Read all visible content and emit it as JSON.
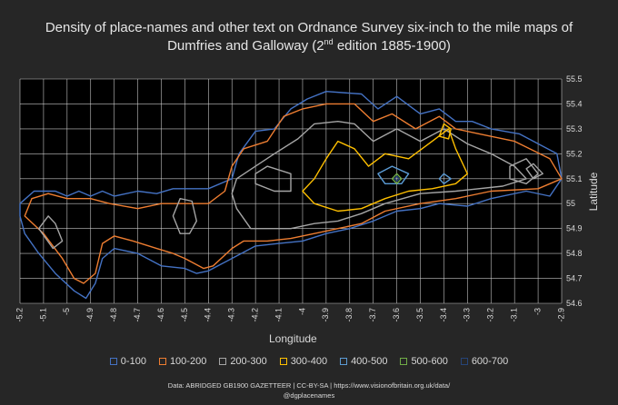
{
  "title": {
    "line1": "Density of place-names and other text on Ordnance Survey six-inch to the mile maps of",
    "line2_before": "Dumfries and Galloway (2",
    "line2_sup": "nd",
    "line2_after": " edition 1885-1900)"
  },
  "chart_data": {
    "type": "contour",
    "xlabel": "Longitude",
    "ylabel": "Latitude",
    "xlim": [
      -5.2,
      -2.9
    ],
    "ylim": [
      54.6,
      55.5
    ],
    "x_ticks": [
      "-5.2",
      "-5.1",
      "-5",
      "-4.9",
      "-4.8",
      "-4.7",
      "-4.6",
      "-4.5",
      "-4.4",
      "-4.3",
      "-4.2",
      "-4.1",
      "-4",
      "-3.9",
      "-3.8",
      "-3.7",
      "-3.6",
      "-3.5",
      "-3.4",
      "-3.3",
      "-3.2",
      "-3.1",
      "-3",
      "-2.9"
    ],
    "y_ticks": [
      "55.5",
      "55.4",
      "55.3",
      "55.2",
      "55.1",
      "55",
      "54.9",
      "54.8",
      "54.7",
      "54.6"
    ],
    "grid": true,
    "legend_position": "bottom",
    "series": [
      {
        "name": "0-100",
        "color": "#4472c4"
      },
      {
        "name": "100-200",
        "color": "#ed7d31"
      },
      {
        "name": "200-300",
        "color": "#a5a5a5"
      },
      {
        "name": "300-400",
        "color": "#ffc000"
      },
      {
        "name": "400-500",
        "color": "#5b9bd5"
      },
      {
        "name": "500-600",
        "color": "#70ad47"
      },
      {
        "name": "600-700",
        "color": "#264478"
      }
    ],
    "contours": [
      {
        "series": 0,
        "closed": true,
        "points": [
          [
            -5.2,
            54.95
          ],
          [
            -5.2,
            55.0
          ],
          [
            -5.14,
            55.05
          ],
          [
            -5.05,
            55.05
          ],
          [
            -5.0,
            55.03
          ],
          [
            -4.95,
            55.05
          ],
          [
            -4.9,
            55.03
          ],
          [
            -4.85,
            55.05
          ],
          [
            -4.8,
            55.03
          ],
          [
            -4.7,
            55.05
          ],
          [
            -4.62,
            55.04
          ],
          [
            -4.55,
            55.06
          ],
          [
            -4.4,
            55.06
          ],
          [
            -4.3,
            55.1
          ],
          [
            -4.27,
            55.2
          ],
          [
            -4.2,
            55.29
          ],
          [
            -4.12,
            55.3
          ],
          [
            -4.05,
            55.38
          ],
          [
            -3.98,
            55.42
          ],
          [
            -3.9,
            55.45
          ],
          [
            -3.75,
            55.44
          ],
          [
            -3.68,
            55.38
          ],
          [
            -3.6,
            55.43
          ],
          [
            -3.5,
            55.36
          ],
          [
            -3.42,
            55.38
          ],
          [
            -3.35,
            55.33
          ],
          [
            -3.28,
            55.33
          ],
          [
            -3.2,
            55.3
          ],
          [
            -3.08,
            55.28
          ],
          [
            -2.92,
            55.2
          ],
          [
            -2.9,
            55.1
          ],
          [
            -2.95,
            55.03
          ],
          [
            -3.05,
            55.05
          ],
          [
            -3.2,
            55.02
          ],
          [
            -3.3,
            54.99
          ],
          [
            -3.42,
            55.0
          ],
          [
            -3.5,
            54.98
          ],
          [
            -3.6,
            54.97
          ],
          [
            -3.7,
            54.93
          ],
          [
            -3.8,
            54.9
          ],
          [
            -3.9,
            54.88
          ],
          [
            -4.0,
            54.85
          ],
          [
            -4.1,
            54.84
          ],
          [
            -4.2,
            54.83
          ],
          [
            -4.3,
            54.78
          ],
          [
            -4.4,
            54.73
          ],
          [
            -4.45,
            54.72
          ],
          [
            -4.5,
            54.74
          ],
          [
            -4.6,
            54.75
          ],
          [
            -4.7,
            54.8
          ],
          [
            -4.8,
            54.82
          ],
          [
            -4.85,
            54.78
          ],
          [
            -4.88,
            54.68
          ],
          [
            -4.92,
            54.62
          ],
          [
            -4.97,
            54.65
          ],
          [
            -5.05,
            54.72
          ],
          [
            -5.12,
            54.8
          ],
          [
            -5.18,
            54.88
          ]
        ]
      },
      {
        "series": 1,
        "closed": true,
        "points": [
          [
            -5.18,
            54.95
          ],
          [
            -5.15,
            55.02
          ],
          [
            -5.08,
            55.04
          ],
          [
            -5.0,
            55.02
          ],
          [
            -4.9,
            55.02
          ],
          [
            -4.82,
            55.0
          ],
          [
            -4.7,
            54.98
          ],
          [
            -4.6,
            55.0
          ],
          [
            -4.5,
            55.0
          ],
          [
            -4.4,
            55.0
          ],
          [
            -4.33,
            55.05
          ],
          [
            -4.3,
            55.15
          ],
          [
            -4.25,
            55.22
          ],
          [
            -4.15,
            55.25
          ],
          [
            -4.08,
            55.35
          ],
          [
            -4.0,
            55.38
          ],
          [
            -3.9,
            55.4
          ],
          [
            -3.78,
            55.4
          ],
          [
            -3.7,
            55.33
          ],
          [
            -3.62,
            55.36
          ],
          [
            -3.52,
            55.3
          ],
          [
            -3.42,
            55.35
          ],
          [
            -3.35,
            55.3
          ],
          [
            -3.25,
            55.28
          ],
          [
            -3.1,
            55.25
          ],
          [
            -2.95,
            55.18
          ],
          [
            -2.9,
            55.1
          ],
          [
            -3.0,
            55.06
          ],
          [
            -3.2,
            55.05
          ],
          [
            -3.35,
            55.02
          ],
          [
            -3.5,
            55.0
          ],
          [
            -3.65,
            54.97
          ],
          [
            -3.75,
            54.92
          ],
          [
            -3.85,
            54.9
          ],
          [
            -3.95,
            54.88
          ],
          [
            -4.05,
            54.86
          ],
          [
            -4.15,
            54.85
          ],
          [
            -4.25,
            54.85
          ],
          [
            -4.3,
            54.82
          ],
          [
            -4.38,
            54.75
          ],
          [
            -4.42,
            54.74
          ],
          [
            -4.5,
            54.78
          ],
          [
            -4.55,
            54.8
          ],
          [
            -4.62,
            54.82
          ],
          [
            -4.72,
            54.85
          ],
          [
            -4.8,
            54.87
          ],
          [
            -4.85,
            54.84
          ],
          [
            -4.88,
            54.72
          ],
          [
            -4.93,
            54.68
          ],
          [
            -4.97,
            54.7
          ],
          [
            -5.02,
            54.78
          ],
          [
            -5.1,
            54.88
          ]
        ]
      },
      {
        "series": 2,
        "closed": true,
        "points": [
          [
            -4.28,
            55.1
          ],
          [
            -4.2,
            55.15
          ],
          [
            -4.12,
            55.2
          ],
          [
            -4.02,
            55.26
          ],
          [
            -3.95,
            55.32
          ],
          [
            -3.85,
            55.33
          ],
          [
            -3.78,
            55.32
          ],
          [
            -3.7,
            55.25
          ],
          [
            -3.6,
            55.3
          ],
          [
            -3.5,
            55.25
          ],
          [
            -3.4,
            55.3
          ],
          [
            -3.3,
            55.24
          ],
          [
            -3.2,
            55.2
          ],
          [
            -3.1,
            55.15
          ],
          [
            -3.05,
            55.1
          ],
          [
            -3.15,
            55.07
          ],
          [
            -3.35,
            55.05
          ],
          [
            -3.5,
            55.04
          ],
          [
            -3.65,
            55.0
          ],
          [
            -3.75,
            54.96
          ],
          [
            -3.85,
            54.93
          ],
          [
            -3.95,
            54.92
          ],
          [
            -4.05,
            54.9
          ],
          [
            -4.15,
            54.9
          ],
          [
            -4.22,
            54.9
          ],
          [
            -4.28,
            54.98
          ],
          [
            -4.3,
            55.04
          ]
        ]
      },
      {
        "series": 2,
        "closed": true,
        "points": [
          [
            -4.55,
            54.95
          ],
          [
            -4.52,
            55.02
          ],
          [
            -4.47,
            55.01
          ],
          [
            -4.45,
            54.93
          ],
          [
            -4.48,
            54.88
          ],
          [
            -4.52,
            54.88
          ]
        ]
      },
      {
        "series": 2,
        "closed": true,
        "points": [
          [
            -5.12,
            54.9
          ],
          [
            -5.08,
            54.95
          ],
          [
            -5.05,
            54.92
          ],
          [
            -5.02,
            54.85
          ],
          [
            -5.06,
            54.82
          ]
        ]
      },
      {
        "series": 2,
        "closed": true,
        "points": [
          [
            -3.12,
            55.15
          ],
          [
            -3.05,
            55.18
          ],
          [
            -3.0,
            55.12
          ],
          [
            -3.05,
            55.08
          ],
          [
            -3.12,
            55.1
          ]
        ]
      },
      {
        "series": 2,
        "closed": true,
        "points": [
          [
            -3.05,
            55.14
          ],
          [
            -3.02,
            55.16
          ],
          [
            -2.98,
            55.12
          ],
          [
            -3.02,
            55.1
          ]
        ]
      },
      {
        "series": 2,
        "closed": true,
        "points": [
          [
            -4.2,
            55.12
          ],
          [
            -4.15,
            55.15
          ],
          [
            -4.05,
            55.12
          ],
          [
            -4.05,
            55.05
          ],
          [
            -4.12,
            55.05
          ],
          [
            -4.2,
            55.08
          ]
        ]
      },
      {
        "series": 3,
        "closed": true,
        "points": [
          [
            -3.95,
            55.1
          ],
          [
            -3.9,
            55.18
          ],
          [
            -3.85,
            55.25
          ],
          [
            -3.78,
            55.22
          ],
          [
            -3.72,
            55.15
          ],
          [
            -3.65,
            55.2
          ],
          [
            -3.55,
            55.18
          ],
          [
            -3.45,
            55.25
          ],
          [
            -3.38,
            55.3
          ],
          [
            -3.35,
            55.22
          ],
          [
            -3.3,
            55.12
          ],
          [
            -3.35,
            55.08
          ],
          [
            -3.45,
            55.06
          ],
          [
            -3.55,
            55.05
          ],
          [
            -3.65,
            55.02
          ],
          [
            -3.75,
            54.98
          ],
          [
            -3.85,
            54.97
          ],
          [
            -3.95,
            55.0
          ],
          [
            -4.0,
            55.05
          ]
        ]
      },
      {
        "series": 3,
        "closed": true,
        "points": [
          [
            -3.42,
            55.27
          ],
          [
            -3.4,
            55.32
          ],
          [
            -3.37,
            55.3
          ],
          [
            -3.38,
            55.26
          ]
        ]
      },
      {
        "series": 4,
        "closed": true,
        "points": [
          [
            -3.68,
            55.12
          ],
          [
            -3.62,
            55.15
          ],
          [
            -3.55,
            55.12
          ],
          [
            -3.58,
            55.08
          ],
          [
            -3.65,
            55.08
          ]
        ]
      },
      {
        "series": 4,
        "closed": true,
        "points": [
          [
            -3.42,
            55.1
          ],
          [
            -3.4,
            55.12
          ],
          [
            -3.37,
            55.1
          ],
          [
            -3.4,
            55.08
          ]
        ]
      },
      {
        "series": 5,
        "closed": true,
        "points": [
          [
            -3.62,
            55.1
          ],
          [
            -3.6,
            55.12
          ],
          [
            -3.58,
            55.1
          ],
          [
            -3.6,
            55.08
          ]
        ]
      },
      {
        "series": 6,
        "closed": true,
        "points": [
          [
            -3.61,
            55.1
          ],
          [
            -3.6,
            55.11
          ],
          [
            -3.59,
            55.1
          ],
          [
            -3.6,
            55.09
          ]
        ]
      }
    ]
  },
  "footer": {
    "line1": "Data: ABRIDGED GB1900 GAZETTEER | CC-BY-SA | https://www.visionofbritain.org.uk/data/",
    "line2": "@dgplacenames"
  }
}
